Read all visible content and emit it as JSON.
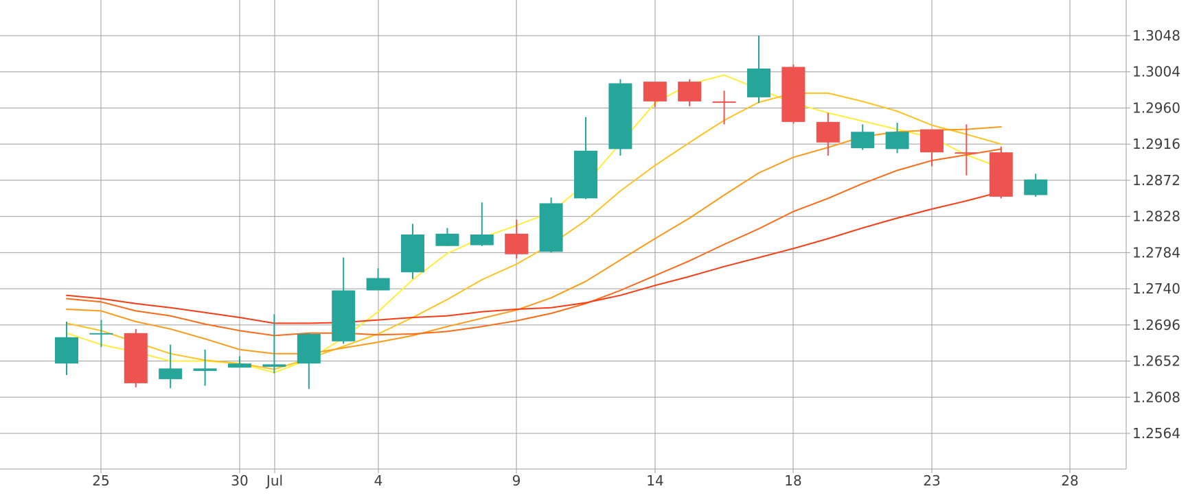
{
  "chart_data": {
    "type": "candlestick",
    "x_tick_labels": [
      "25",
      "30",
      "Jul",
      "4",
      "9",
      "14",
      "18",
      "23",
      "28"
    ],
    "y_tick_labels": [
      "1.3048",
      "1.3004",
      "1.2960",
      "1.2916",
      "1.2872",
      "1.2828",
      "1.2784",
      "1.2740",
      "1.2696",
      "1.2652",
      "1.2608",
      "1.2564"
    ],
    "ylim": [
      1.2519,
      1.3094
    ],
    "grid": true,
    "colors": {
      "up": "#26a69a",
      "down": "#ef5350",
      "grid": "#9e9e9e",
      "axis": "#9e9e9e",
      "label": "#3d3d3d"
    },
    "candles": [
      {
        "date": "Jun 24",
        "open": 1.2649,
        "high": 1.27,
        "low": 1.2635,
        "close": 1.2681,
        "dir": "up"
      },
      {
        "date": "Jun 25",
        "open": 1.2685,
        "high": 1.2702,
        "low": 1.2669,
        "close": 1.2686,
        "dir": "up"
      },
      {
        "date": "Jun 26",
        "open": 1.2686,
        "high": 1.2691,
        "low": 1.262,
        "close": 1.2625,
        "dir": "down"
      },
      {
        "date": "Jun 27",
        "open": 1.263,
        "high": 1.2672,
        "low": 1.2619,
        "close": 1.2643,
        "dir": "up"
      },
      {
        "date": "Jun 28",
        "open": 1.264,
        "high": 1.2666,
        "low": 1.2622,
        "close": 1.2643,
        "dir": "up"
      },
      {
        "date": "Jun 29",
        "open": 1.2644,
        "high": 1.2658,
        "low": 1.2644,
        "close": 1.2649,
        "dir": "up"
      },
      {
        "date": "Jul 1",
        "open": 1.2645,
        "high": 1.2709,
        "low": 1.2637,
        "close": 1.2648,
        "dir": "up"
      },
      {
        "date": "Jul 2",
        "open": 1.2649,
        "high": 1.2686,
        "low": 1.2618,
        "close": 1.2685,
        "dir": "up"
      },
      {
        "date": "Jul 3",
        "open": 1.2676,
        "high": 1.2778,
        "low": 1.2673,
        "close": 1.2738,
        "dir": "up"
      },
      {
        "date": "Jul 4",
        "open": 1.2738,
        "high": 1.2765,
        "low": 1.2738,
        "close": 1.2753,
        "dir": "up"
      },
      {
        "date": "Jul 5",
        "open": 1.276,
        "high": 1.2819,
        "low": 1.2752,
        "close": 1.2806,
        "dir": "up"
      },
      {
        "date": "Jul 6",
        "open": 1.2792,
        "high": 1.2814,
        "low": 1.2792,
        "close": 1.2807,
        "dir": "up"
      },
      {
        "date": "Jul 8",
        "open": 1.2793,
        "high": 1.2845,
        "low": 1.2792,
        "close": 1.2806,
        "dir": "up"
      },
      {
        "date": "Jul 9",
        "open": 1.2807,
        "high": 1.2824,
        "low": 1.2777,
        "close": 1.2782,
        "dir": "down"
      },
      {
        "date": "Jul 10",
        "open": 1.2785,
        "high": 1.2851,
        "low": 1.2784,
        "close": 1.2844,
        "dir": "up"
      },
      {
        "date": "Jul 11",
        "open": 1.285,
        "high": 1.2949,
        "low": 1.2849,
        "close": 1.2908,
        "dir": "up"
      },
      {
        "date": "Jul 12",
        "open": 1.291,
        "high": 1.2995,
        "low": 1.2902,
        "close": 1.299,
        "dir": "up"
      },
      {
        "date": "Jul 13",
        "open": 1.2992,
        "high": 1.2992,
        "low": 1.2961,
        "close": 1.2968,
        "dir": "down"
      },
      {
        "date": "Jul 15",
        "open": 1.2992,
        "high": 1.2995,
        "low": 1.2962,
        "close": 1.2968,
        "dir": "down"
      },
      {
        "date": "Jul 16",
        "open": 1.2968,
        "high": 1.2981,
        "low": 1.294,
        "close": 1.2968,
        "dir": "down"
      },
      {
        "date": "Jul 17",
        "open": 1.2973,
        "high": 1.3048,
        "low": 1.2966,
        "close": 1.3008,
        "dir": "up"
      },
      {
        "date": "Jul 18",
        "open": 1.301,
        "high": 1.3013,
        "low": 1.2941,
        "close": 1.2943,
        "dir": "down"
      },
      {
        "date": "Jul 19",
        "open": 1.2943,
        "high": 1.2954,
        "low": 1.2902,
        "close": 1.2918,
        "dir": "down"
      },
      {
        "date": "Jul 20",
        "open": 1.2911,
        "high": 1.294,
        "low": 1.2909,
        "close": 1.2931,
        "dir": "up"
      },
      {
        "date": "Jul 22",
        "open": 1.291,
        "high": 1.2942,
        "low": 1.2905,
        "close": 1.2931,
        "dir": "up"
      },
      {
        "date": "Jul 23",
        "open": 1.2934,
        "high": 1.2934,
        "low": 1.2889,
        "close": 1.2906,
        "dir": "down"
      },
      {
        "date": "Jul 24",
        "open": 1.2906,
        "high": 1.294,
        "low": 1.2878,
        "close": 1.2906,
        "dir": "down"
      },
      {
        "date": "Jul 25",
        "open": 1.2906,
        "high": 1.2913,
        "low": 1.285,
        "close": 1.2852,
        "dir": "down"
      },
      {
        "date": "Jul 26",
        "open": 1.2854,
        "high": 1.288,
        "low": 1.2852,
        "close": 1.2873,
        "dir": "up"
      }
    ],
    "moving_averages": [
      {
        "color": "#ffee3a",
        "values": [
          1.2686,
          1.2672,
          1.2663,
          1.2652,
          1.2652,
          1.2649,
          1.2638,
          1.2654,
          1.268,
          1.2712,
          1.2751,
          1.2783,
          1.2802,
          1.2817,
          1.2833,
          1.2868,
          1.2917,
          1.2966,
          1.2989,
          1.3,
          1.2983,
          1.2966,
          1.2954,
          1.2944,
          1.2934,
          1.2924,
          1.2903,
          1.2887
        ]
      },
      {
        "color": "#ffc21e",
        "values": [
          1.2698,
          1.2689,
          1.2675,
          1.2661,
          1.2653,
          1.2649,
          1.2642,
          1.2655,
          1.267,
          1.2685,
          1.2705,
          1.2727,
          1.2751,
          1.277,
          1.2794,
          1.2823,
          1.2859,
          1.289,
          1.2918,
          1.2945,
          1.2967,
          1.2978,
          1.2978,
          1.2968,
          1.2956,
          1.2939,
          1.2928,
          1.2916
        ]
      },
      {
        "color": "#ff9a19",
        "values": [
          1.2715,
          1.2713,
          1.27,
          1.2691,
          1.2679,
          1.2666,
          1.2661,
          1.2661,
          1.2668,
          1.2675,
          1.2683,
          1.2694,
          1.2704,
          1.2714,
          1.2729,
          1.2749,
          1.2775,
          1.2801,
          1.2826,
          1.2854,
          1.2881,
          1.29,
          1.2912,
          1.2925,
          1.2931,
          1.2933,
          1.2934,
          1.2937
        ]
      },
      {
        "color": "#ff6a17",
        "values": [
          1.2728,
          1.2724,
          1.2713,
          1.2707,
          1.2697,
          1.2689,
          1.2683,
          1.2686,
          1.2686,
          1.2684,
          1.2685,
          1.2688,
          1.2694,
          1.2701,
          1.271,
          1.2722,
          1.2738,
          1.2756,
          1.2774,
          1.2794,
          1.2813,
          1.2834,
          1.285,
          1.2868,
          1.2884,
          1.2896,
          1.2903,
          1.291
        ]
      },
      {
        "color": "#ff3a12",
        "values": [
          1.2732,
          1.2728,
          1.2722,
          1.2717,
          1.2711,
          1.2705,
          1.2698,
          1.2698,
          1.2699,
          1.2702,
          1.2705,
          1.2707,
          1.2712,
          1.2715,
          1.2717,
          1.2723,
          1.2732,
          1.2744,
          1.2755,
          1.2767,
          1.2778,
          1.2789,
          1.2801,
          1.2814,
          1.2826,
          1.2837,
          1.2847,
          1.2858
        ]
      }
    ]
  }
}
